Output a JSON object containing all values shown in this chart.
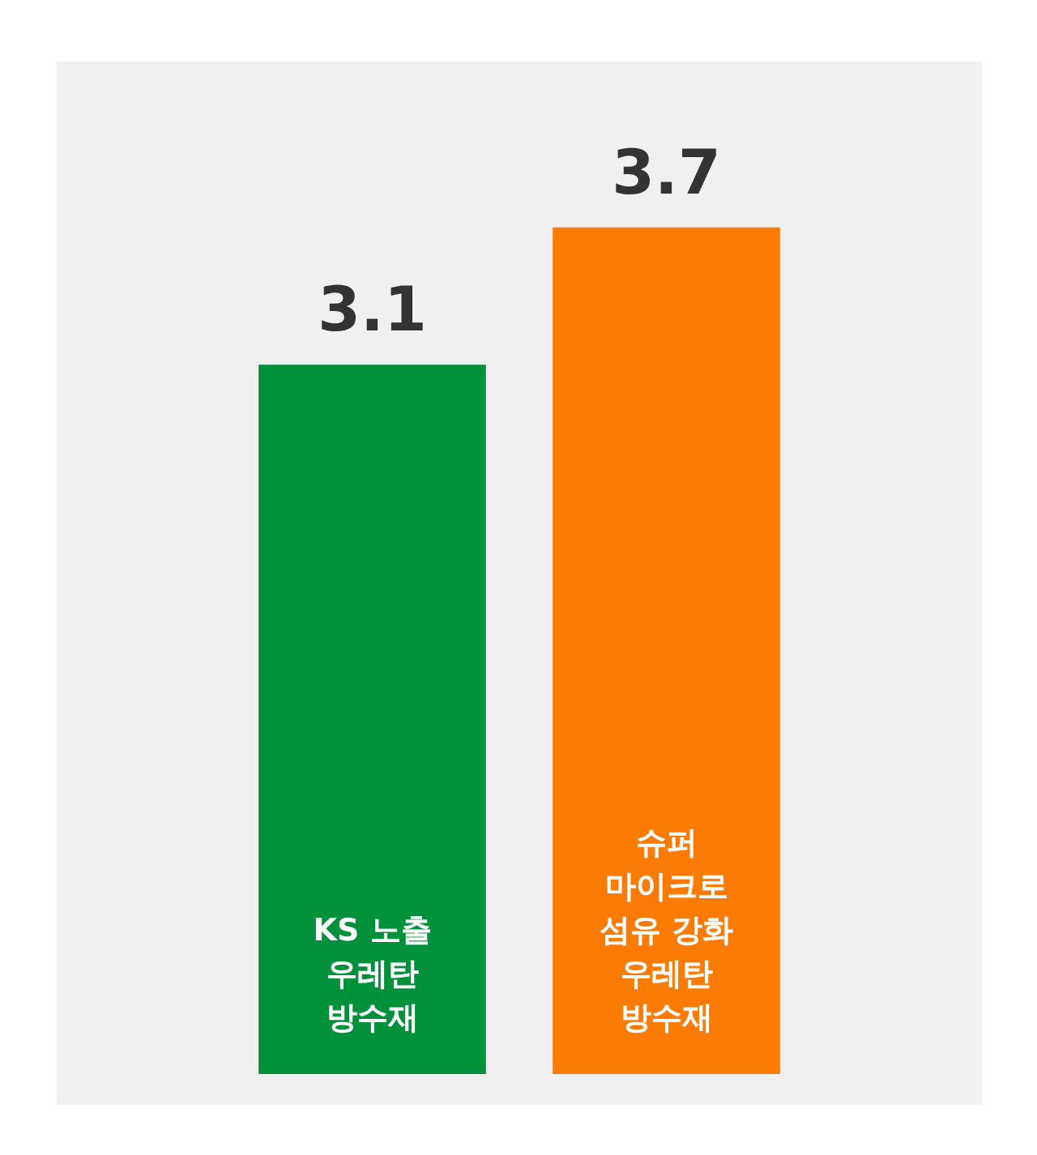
{
  "chart_data": {
    "type": "bar",
    "categories": [
      "KS 노출 우레탄 방수재",
      "슈퍼 마이크로 섬유 강화 우레탄 방수재"
    ],
    "values": [
      3.1,
      3.7
    ],
    "colors": [
      "#00913a",
      "#fc7b05"
    ],
    "data_labels": true
  }
}
